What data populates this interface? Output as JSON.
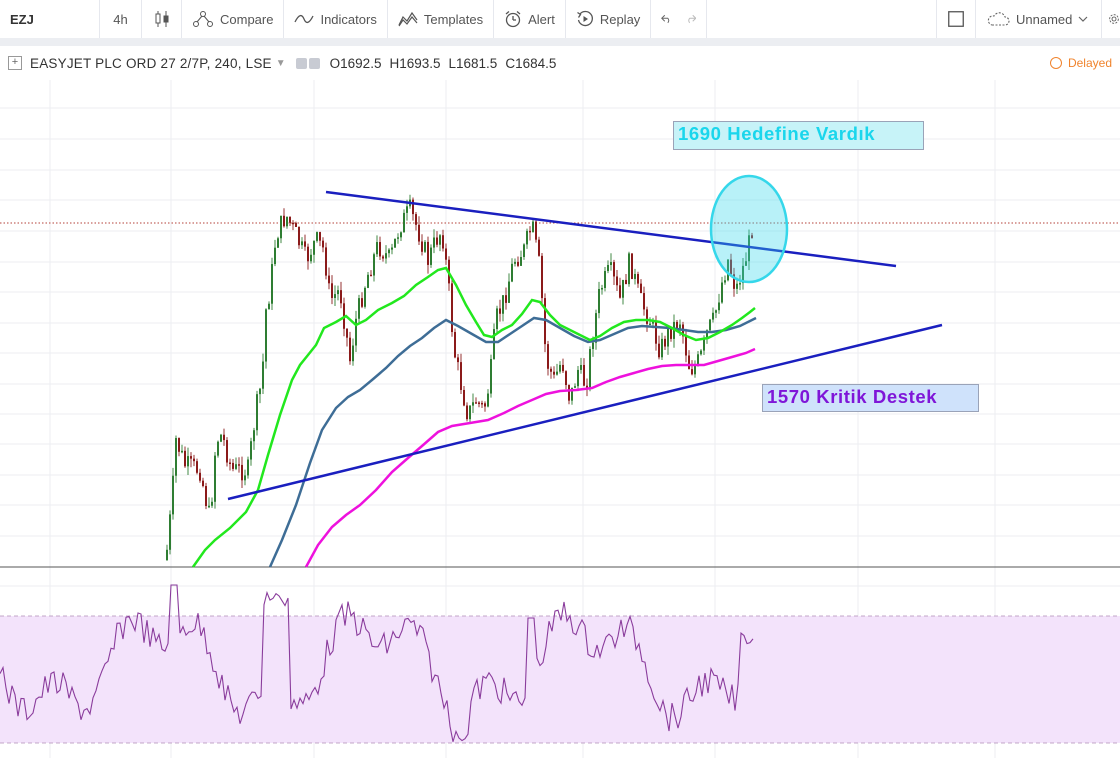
{
  "toolbar": {
    "symbol": "EZJ",
    "interval": "4h",
    "compare": "Compare",
    "indicators": "Indicators",
    "templates": "Templates",
    "alert": "Alert",
    "replay": "Replay",
    "layout_name": "Unnamed"
  },
  "legend": {
    "title": "EASYJET PLC ORD 27 2/7P, 240, LSE",
    "open_key": "O",
    "open": "1692.5",
    "high_key": "H",
    "high": "1693.5",
    "low_key": "L",
    "low": "1681.5",
    "close_key": "C",
    "close": "1684.5",
    "status": "Delayed"
  },
  "annotations": {
    "target": "1690 Hedefine Vardık",
    "support": "1570 Kritik Destek"
  },
  "colors": {
    "up": "#2e7d32",
    "down": "#8b1a1a",
    "ema_fast": "#22e81e",
    "ema_mid": "#3e6d96",
    "ema_slow": "#ee11dd",
    "trendline": "#1a1fbf",
    "circle": "#35d7ea",
    "rsi": "#8a3c9c",
    "rsi_band": "#f3e3fb"
  }
}
